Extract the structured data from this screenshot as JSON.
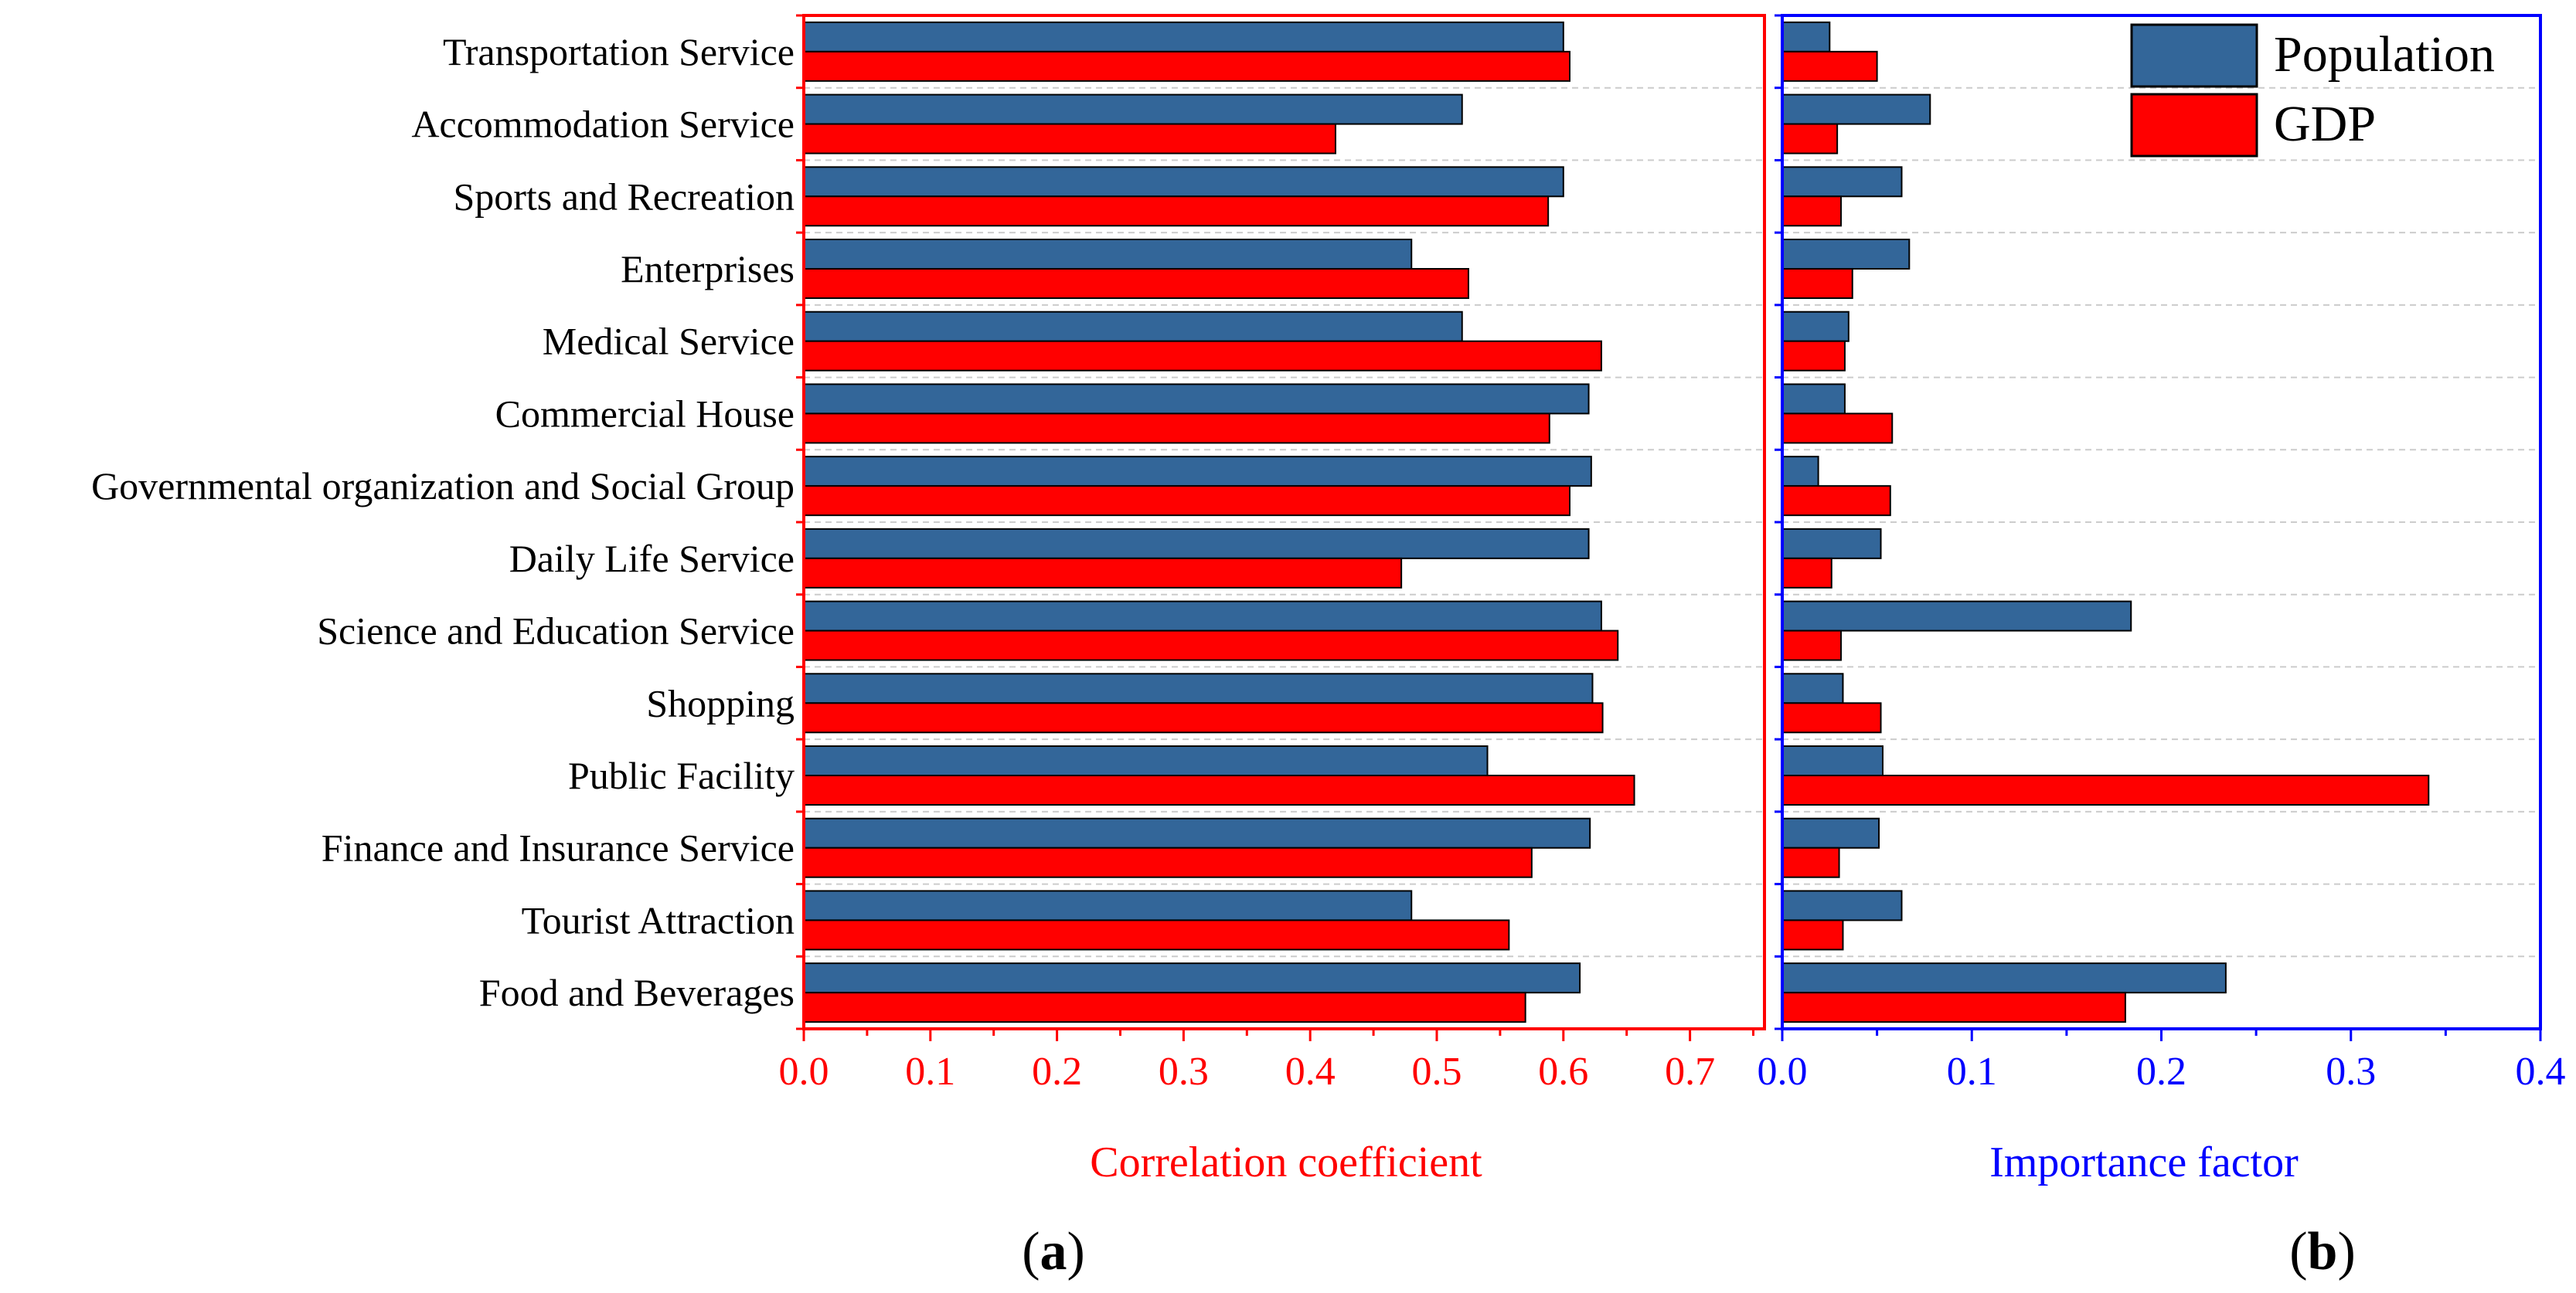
{
  "chart_data": {
    "type": "bar",
    "orientation": "horizontal",
    "categories": [
      "Transportation Service",
      "Accommodation Service",
      "Sports and Recreation",
      "Enterprises",
      "Medical Service",
      "Commercial House",
      "Governmental organization and Social Group",
      "Daily Life Service",
      "Science and Education Service",
      "Shopping",
      "Public Facility",
      "Finance and Insurance Service",
      "Tourist Attraction",
      "Food and Beverages"
    ],
    "colors": {
      "population": "#336699",
      "gdp": "#ff0000",
      "panel_a_frame": "#ff0000",
      "panel_b_frame": "#0000ff",
      "grid": "#cccccc"
    },
    "legend": {
      "placement": "top-right",
      "entries": [
        {
          "name": "Population"
        },
        {
          "name": "GDP"
        }
      ]
    },
    "panels": [
      {
        "id": "a",
        "label_open": "(",
        "label_letter": "a",
        "label_close": ")",
        "xlabel": "Correlation coefficient",
        "xlim": [
          0,
          0.75
        ],
        "xticks": [
          "0.0",
          "0.1",
          "0.2",
          "0.3",
          "0.4",
          "0.5",
          "0.6",
          "0.7"
        ],
        "axis_color": "#ff0000",
        "grid": true,
        "series": [
          {
            "name": "Population",
            "values": [
              0.6,
              0.52,
              0.6,
              0.48,
              0.52,
              0.62,
              0.622,
              0.62,
              0.63,
              0.623,
              0.54,
              0.621,
              0.48,
              0.613
            ]
          },
          {
            "name": "GDP",
            "values": [
              0.605,
              0.42,
              0.588,
              0.525,
              0.63,
              0.589,
              0.605,
              0.472,
              0.643,
              0.631,
              0.656,
              0.575,
              0.557,
              0.57
            ]
          }
        ]
      },
      {
        "id": "b",
        "label_open": "(",
        "label_letter": "b",
        "label_close": ")",
        "xlabel": "Importance factor",
        "xlim": [
          0,
          0.4
        ],
        "xticks": [
          "0.0",
          "0.1",
          "0.2",
          "0.3",
          "0.4"
        ],
        "axis_color": "#0000ff",
        "grid": true,
        "series": [
          {
            "name": "Population",
            "values": [
              0.025,
              0.078,
              0.063,
              0.067,
              0.035,
              0.033,
              0.019,
              0.052,
              0.184,
              0.032,
              0.053,
              0.051,
              0.063,
              0.234
            ]
          },
          {
            "name": "GDP",
            "values": [
              0.05,
              0.029,
              0.031,
              0.037,
              0.033,
              0.058,
              0.057,
              0.026,
              0.031,
              0.052,
              0.341,
              0.03,
              0.032,
              0.181
            ]
          }
        ]
      }
    ]
  }
}
